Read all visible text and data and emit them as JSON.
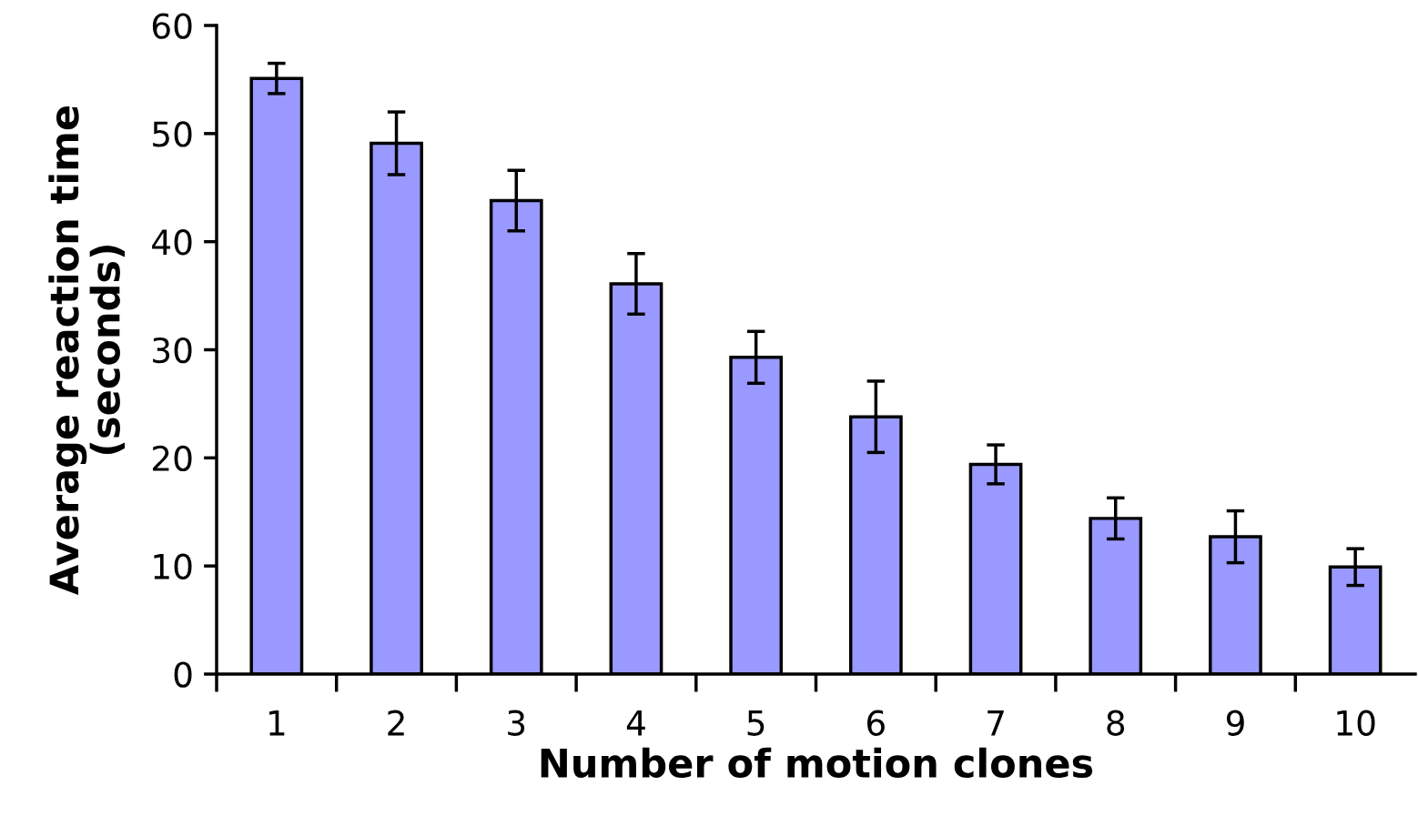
{
  "chart_data": {
    "type": "bar",
    "xlabel": "Number of motion clones",
    "ylabel": "Average reaction time\n(seconds)",
    "categories": [
      "1",
      "2",
      "3",
      "4",
      "5",
      "6",
      "7",
      "8",
      "9",
      "10"
    ],
    "values": [
      55.1,
      49.1,
      43.8,
      36.1,
      29.3,
      23.8,
      19.4,
      14.4,
      12.7,
      9.9
    ],
    "errors": [
      1.4,
      2.9,
      2.8,
      2.8,
      2.4,
      3.3,
      1.8,
      1.9,
      2.4,
      1.7
    ],
    "color": "#9999ff",
    "ylim": [
      0,
      60
    ],
    "yticks": [
      0,
      10,
      20,
      30,
      40,
      50,
      60
    ],
    "grid": false
  }
}
